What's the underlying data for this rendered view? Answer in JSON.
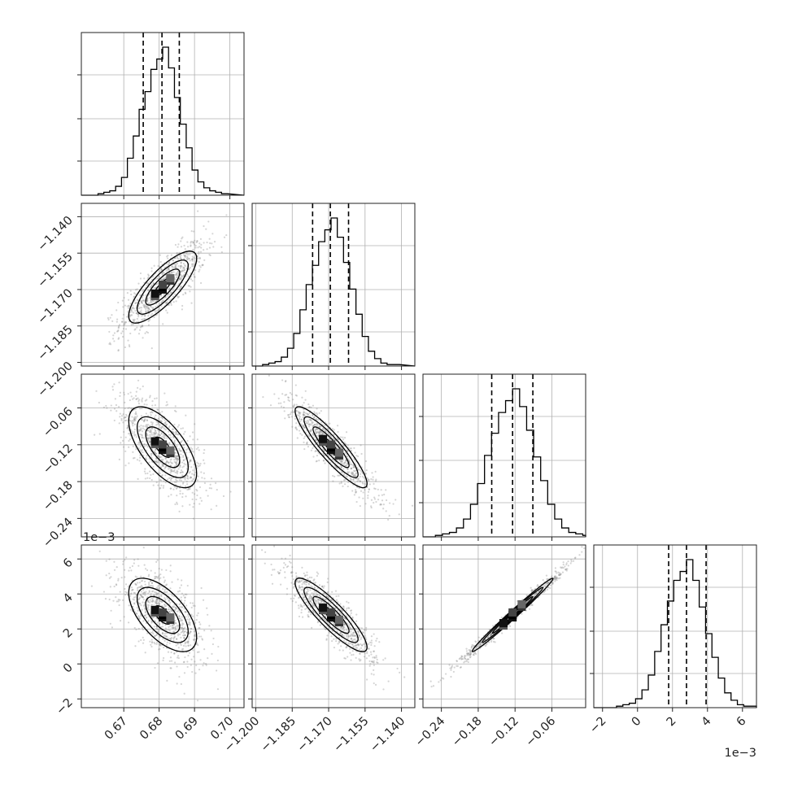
{
  "chart_data": {
    "type": "corner",
    "grid": true,
    "n_params": 4,
    "parameters": [
      {
        "range": [
          0.658,
          0.704
        ],
        "ticks": [
          0.67,
          0.68,
          0.69,
          0.7
        ],
        "tick_labels": [
          "0.67",
          "0.68",
          "0.69",
          "0.70"
        ],
        "offset_label": "",
        "quantiles": [
          0.6755,
          0.6808,
          0.6857
        ],
        "mean": 0.681,
        "sd": 0.0048,
        "hist_counts": [
          1,
          2,
          3,
          6,
          12,
          25,
          40,
          58,
          70,
          85,
          92,
          100,
          86,
          66,
          48,
          32,
          17,
          9,
          5,
          3,
          2,
          1
        ]
      },
      {
        "range": [
          -1.2015,
          -1.1345
        ],
        "ticks": [
          -1.2,
          -1.185,
          -1.17,
          -1.155,
          -1.14
        ],
        "tick_labels": [
          "−1.200",
          "−1.185",
          "−1.170",
          "−1.155",
          "−1.140"
        ],
        "offset_label": "",
        "quantiles": [
          -1.1766,
          -1.1693,
          -1.1618
        ],
        "mean": -1.169,
        "sd": 0.0074,
        "hist_counts": [
          1,
          2,
          3,
          6,
          12,
          22,
          38,
          55,
          68,
          84,
          92,
          100,
          87,
          70,
          52,
          35,
          20,
          10,
          5,
          2,
          1,
          1
        ]
      },
      {
        "range": [
          -0.27,
          -0.005
        ],
        "ticks": [
          -0.24,
          -0.18,
          -0.12,
          -0.06
        ],
        "tick_labels": [
          "−0.24",
          "−0.18",
          "−0.12",
          "−0.06"
        ],
        "offset_label": "",
        "quantiles": [
          -0.158,
          -0.124,
          -0.091
        ],
        "mean": -0.124,
        "sd": 0.033,
        "hist_counts": [
          1,
          2,
          3,
          6,
          12,
          22,
          36,
          55,
          70,
          84,
          92,
          100,
          88,
          72,
          54,
          38,
          22,
          12,
          6,
          3,
          2,
          1
        ]
      },
      {
        "range": [
          -0.0025,
          0.0068
        ],
        "ticks": [
          -0.002,
          0,
          0.002,
          0.004,
          0.006
        ],
        "tick_labels": [
          "−2",
          "0",
          "2",
          "4",
          "6"
        ],
        "offset_label": "1e−3",
        "quantiles": [
          0.00178,
          0.0028,
          0.00392
        ],
        "mean": 0.0028,
        "sd": 0.00105,
        "hist_counts": [
          1,
          2,
          3,
          6,
          12,
          22,
          38,
          56,
          72,
          86,
          92,
          100,
          86,
          68,
          50,
          34,
          20,
          10,
          5,
          2,
          1,
          1
        ]
      }
    ],
    "correlations": [
      [
        1,
        0.8,
        -0.65,
        -0.6
      ],
      [
        0.8,
        1,
        -0.9,
        -0.88
      ],
      [
        -0.65,
        -0.9,
        1,
        0.99
      ],
      [
        -0.6,
        -0.88,
        0.99,
        1
      ]
    ],
    "contour_levels_sigma": [
      0.5,
      1.0,
      1.5,
      2.0
    ]
  }
}
